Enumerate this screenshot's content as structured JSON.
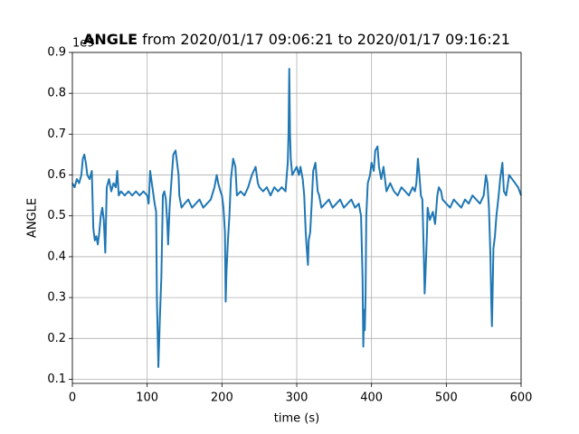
{
  "chart_data": {
    "type": "line",
    "title_parts": [
      "ANGLE",
      "from 2020/01/17 09:06:21 to 2020/01/17 09:16:21"
    ],
    "x_label": "time (s)",
    "y_label": "ANGLE",
    "y_offset_label": "1e9",
    "x": [
      0,
      3,
      6,
      9,
      12,
      14,
      16,
      18,
      20,
      23,
      26,
      28,
      30,
      32,
      34,
      36,
      38,
      40,
      42,
      44,
      46,
      49,
      52,
      55,
      58,
      60,
      62,
      65,
      70,
      75,
      80,
      85,
      90,
      95,
      100,
      102,
      104,
      107,
      110,
      112,
      113,
      115,
      117,
      119,
      121,
      123,
      125,
      127,
      128,
      130,
      133,
      135,
      138,
      140,
      142,
      143,
      146,
      150,
      155,
      160,
      165,
      170,
      175,
      180,
      185,
      190,
      193,
      195,
      198,
      200,
      202,
      204,
      205,
      206,
      208,
      210,
      212,
      215,
      218,
      220,
      225,
      230,
      235,
      240,
      245,
      248,
      250,
      255,
      260,
      265,
      270,
      275,
      280,
      285,
      288,
      289,
      290,
      291,
      292,
      294,
      297,
      300,
      303,
      305,
      308,
      310,
      312,
      313,
      315,
      316,
      318,
      320,
      322,
      325,
      328,
      330,
      333,
      338,
      343,
      348,
      353,
      358,
      363,
      368,
      373,
      378,
      383,
      386,
      388,
      389,
      390,
      391,
      392,
      393,
      395,
      398,
      400,
      403,
      405,
      408,
      410,
      413,
      416,
      420,
      425,
      430,
      435,
      440,
      445,
      450,
      455,
      458,
      460,
      462,
      464,
      466,
      468,
      470,
      471,
      472,
      474,
      475,
      478,
      482,
      485,
      488,
      490,
      493,
      495,
      500,
      505,
      510,
      515,
      520,
      525,
      530,
      535,
      540,
      545,
      550,
      553,
      555,
      557,
      559,
      560,
      561,
      562,
      563,
      565,
      567,
      570,
      572,
      575,
      577,
      580,
      584,
      588,
      592,
      596,
      600
    ],
    "series": [
      {
        "name": "ANGLE",
        "color": "#1f77b4",
        "values": [
          0.58,
          0.57,
          0.59,
          0.58,
          0.6,
          0.64,
          0.65,
          0.63,
          0.6,
          0.59,
          0.61,
          0.47,
          0.44,
          0.45,
          0.43,
          0.46,
          0.5,
          0.52,
          0.49,
          0.41,
          0.57,
          0.59,
          0.56,
          0.58,
          0.57,
          0.61,
          0.55,
          0.56,
          0.55,
          0.56,
          0.55,
          0.56,
          0.55,
          0.56,
          0.55,
          0.53,
          0.61,
          0.57,
          0.53,
          0.51,
          0.3,
          0.13,
          0.25,
          0.35,
          0.55,
          0.56,
          0.54,
          0.48,
          0.43,
          0.52,
          0.6,
          0.65,
          0.66,
          0.63,
          0.6,
          0.55,
          0.52,
          0.53,
          0.54,
          0.52,
          0.53,
          0.54,
          0.52,
          0.53,
          0.54,
          0.57,
          0.6,
          0.58,
          0.56,
          0.55,
          0.52,
          0.46,
          0.29,
          0.36,
          0.44,
          0.5,
          0.59,
          0.64,
          0.62,
          0.55,
          0.56,
          0.55,
          0.57,
          0.6,
          0.62,
          0.58,
          0.57,
          0.56,
          0.57,
          0.55,
          0.57,
          0.56,
          0.57,
          0.56,
          0.63,
          0.7,
          0.86,
          0.7,
          0.64,
          0.6,
          0.61,
          0.62,
          0.6,
          0.62,
          0.59,
          0.55,
          0.46,
          0.43,
          0.38,
          0.44,
          0.46,
          0.53,
          0.61,
          0.63,
          0.56,
          0.55,
          0.52,
          0.53,
          0.54,
          0.52,
          0.53,
          0.54,
          0.52,
          0.53,
          0.54,
          0.52,
          0.53,
          0.5,
          0.35,
          0.18,
          0.27,
          0.22,
          0.3,
          0.5,
          0.58,
          0.6,
          0.63,
          0.61,
          0.66,
          0.67,
          0.62,
          0.59,
          0.62,
          0.56,
          0.58,
          0.56,
          0.55,
          0.57,
          0.56,
          0.55,
          0.57,
          0.56,
          0.58,
          0.64,
          0.6,
          0.55,
          0.54,
          0.4,
          0.31,
          0.35,
          0.45,
          0.52,
          0.49,
          0.51,
          0.48,
          0.55,
          0.57,
          0.56,
          0.54,
          0.53,
          0.52,
          0.54,
          0.53,
          0.52,
          0.54,
          0.53,
          0.55,
          0.54,
          0.53,
          0.55,
          0.6,
          0.58,
          0.52,
          0.4,
          0.3,
          0.23,
          0.32,
          0.42,
          0.45,
          0.5,
          0.55,
          0.59,
          0.63,
          0.56,
          0.55,
          0.6,
          0.59,
          0.58,
          0.57,
          0.55
        ]
      }
    ],
    "xlim": [
      0,
      600
    ],
    "xticks": [
      0,
      100,
      200,
      300,
      400,
      500,
      600
    ],
    "ylim": [
      0.09,
      0.9
    ],
    "yticks": [
      0.1,
      0.2,
      0.3,
      0.4,
      0.5,
      0.6,
      0.7,
      0.8,
      0.9
    ],
    "grid": true
  }
}
